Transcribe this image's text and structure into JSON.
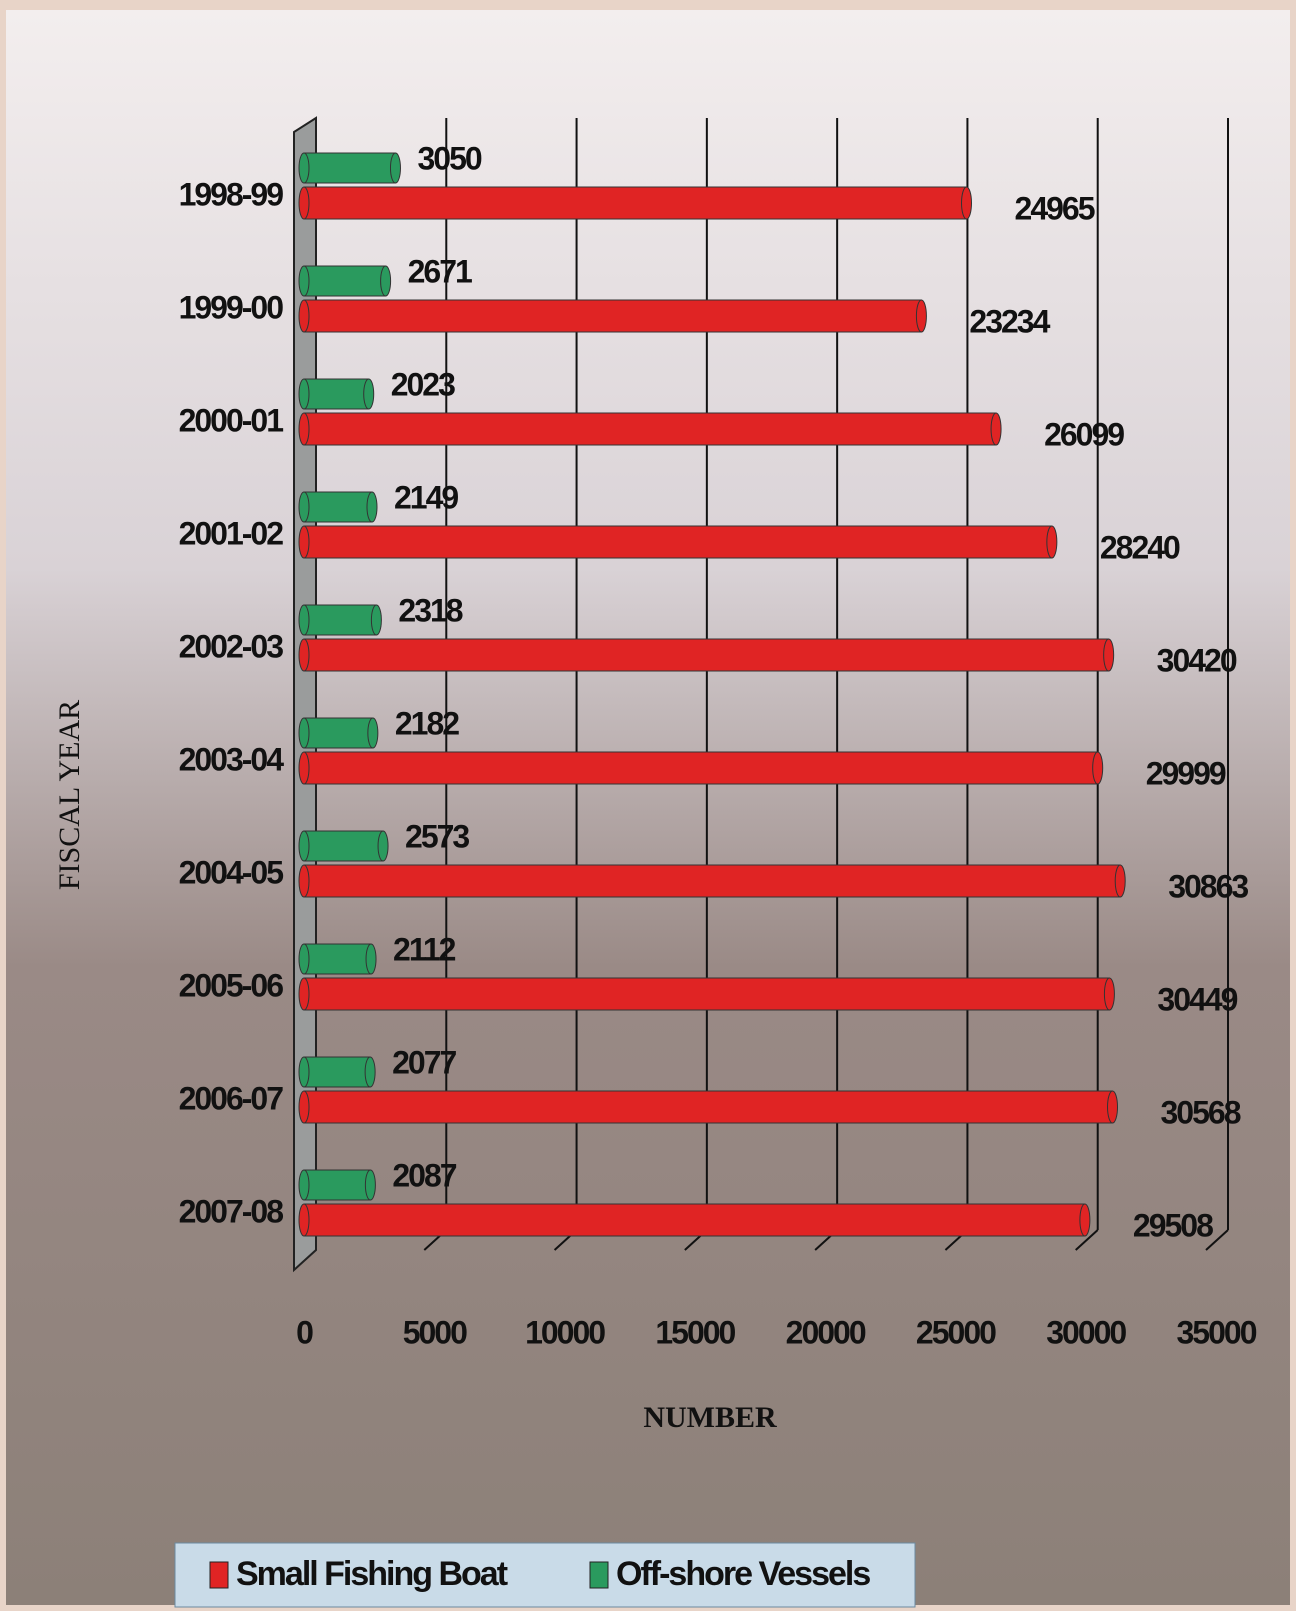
{
  "chart_data": {
    "type": "bar",
    "orientation": "horizontal",
    "x_label": "NUMBER",
    "y_label": "FISCAL YEAR",
    "categories": [
      "1998-99",
      "1999-00",
      "2000-01",
      "2001-02",
      "2002-03",
      "2003-04",
      "2004-05",
      "2005-06",
      "2006-07",
      "2007-08"
    ],
    "series": [
      {
        "name": "Small Fishing Boat",
        "color": "#e02424",
        "values": [
          24965,
          23234,
          26099,
          28240,
          30420,
          29999,
          30863,
          30449,
          30568,
          29508
        ]
      },
      {
        "name": "Off-shore Vessels",
        "color": "#2a9a5e",
        "values": [
          3050,
          2671,
          2023,
          2149,
          2318,
          2182,
          2573,
          2112,
          2077,
          2087
        ]
      }
    ],
    "xlim": [
      0,
      35000
    ],
    "xticks": [
      0,
      5000,
      10000,
      15000,
      20000,
      25000,
      30000,
      35000
    ],
    "grid": true,
    "legend": "bottom"
  }
}
